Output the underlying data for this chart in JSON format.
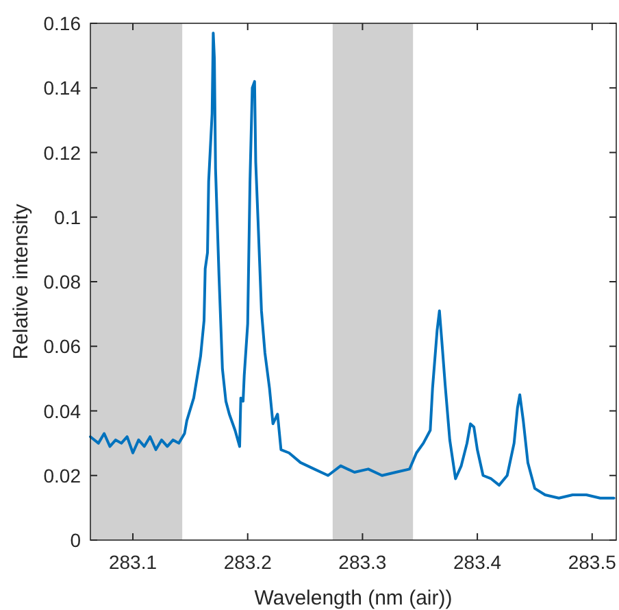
{
  "chart_data": {
    "type": "line",
    "xlabel": "Wavelength (nm (air))",
    "ylabel": "Relative intensity",
    "xlim": [
      283.063,
      283.521
    ],
    "xticks": [
      283.1,
      283.2,
      283.3,
      283.4,
      283.5
    ],
    "ylim": [
      0,
      0.16
    ],
    "yticks": [
      0,
      0.02,
      0.04,
      0.06,
      0.08,
      0.1,
      0.12,
      0.14,
      0.16
    ],
    "bands": [
      {
        "axis": "x",
        "from": 283.063,
        "to": 283.143,
        "color": "#d0d0d0"
      },
      {
        "axis": "x",
        "from": 283.274,
        "to": 283.344,
        "color": "#d0d0d0"
      }
    ],
    "series": [
      {
        "color": "#0072bd",
        "x": [
          283.063,
          283.07,
          283.075,
          283.08,
          283.085,
          283.09,
          283.095,
          283.1,
          283.105,
          283.11,
          283.115,
          283.12,
          283.125,
          283.13,
          283.135,
          283.14,
          283.145,
          283.147,
          283.153,
          283.159,
          283.162,
          283.163,
          283.165,
          283.166,
          283.169,
          283.17,
          283.171,
          283.172,
          283.175,
          283.178,
          283.181,
          283.184,
          283.189,
          283.193,
          283.194,
          283.196,
          283.197,
          283.2,
          283.202,
          283.204,
          283.206,
          283.207,
          283.209,
          283.212,
          283.215,
          283.219,
          283.222,
          283.226,
          283.229,
          283.236,
          283.246,
          283.258,
          283.27,
          283.281,
          283.293,
          283.305,
          283.317,
          283.329,
          283.341,
          283.347,
          283.353,
          283.359,
          283.361,
          283.365,
          283.367,
          283.369,
          283.372,
          283.376,
          283.381,
          283.386,
          283.391,
          283.394,
          283.397,
          283.4,
          283.405,
          283.412,
          283.419,
          283.426,
          283.432,
          283.435,
          283.437,
          283.44,
          283.444,
          283.45,
          283.459,
          283.471,
          283.483,
          283.495,
          283.507,
          283.519
        ],
        "values": [
          0.032,
          0.03,
          0.033,
          0.029,
          0.031,
          0.03,
          0.032,
          0.027,
          0.031,
          0.029,
          0.032,
          0.028,
          0.031,
          0.029,
          0.031,
          0.03,
          0.033,
          0.037,
          0.044,
          0.057,
          0.068,
          0.084,
          0.089,
          0.111,
          0.132,
          0.157,
          0.149,
          0.115,
          0.082,
          0.053,
          0.043,
          0.039,
          0.034,
          0.029,
          0.044,
          0.043,
          0.051,
          0.067,
          0.111,
          0.14,
          0.142,
          0.117,
          0.099,
          0.071,
          0.058,
          0.047,
          0.036,
          0.039,
          0.028,
          0.027,
          0.024,
          0.022,
          0.02,
          0.023,
          0.021,
          0.022,
          0.02,
          0.021,
          0.022,
          0.027,
          0.03,
          0.034,
          0.047,
          0.065,
          0.071,
          0.062,
          0.048,
          0.031,
          0.019,
          0.023,
          0.03,
          0.036,
          0.035,
          0.028,
          0.02,
          0.019,
          0.017,
          0.02,
          0.03,
          0.041,
          0.045,
          0.037,
          0.024,
          0.016,
          0.014,
          0.013,
          0.014,
          0.014,
          0.013,
          0.013
        ]
      }
    ]
  }
}
